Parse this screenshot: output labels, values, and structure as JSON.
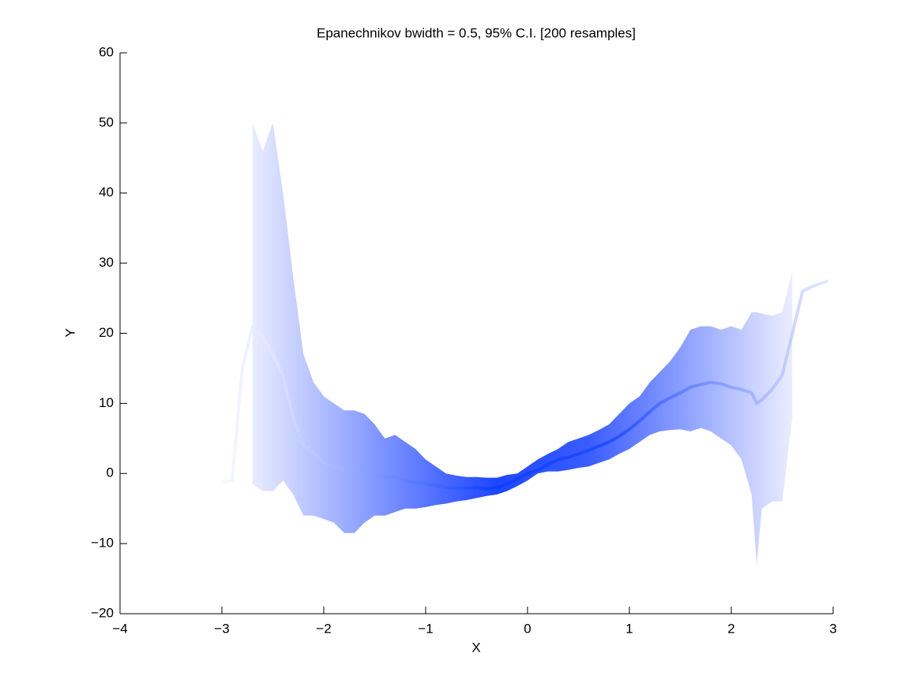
{
  "chart_data": {
    "type": "line",
    "title": "Epanechnikov bwidth = 0.5, 95% C.I. [200 resamples]",
    "xlabel": "X",
    "ylabel": "Y",
    "color": "#1e46ff",
    "x": [
      -3,
      -2.9,
      -2.8,
      -2.7,
      -2.6,
      -2.5,
      -2.4,
      -2.3,
      -2.2,
      -2.1,
      -2,
      -1.9,
      -1.8,
      -1.7,
      -1.6,
      -1.5,
      -1.4,
      -1.3,
      -1.2,
      -1.1,
      -1,
      -0.9,
      -0.8,
      -0.7,
      -0.6,
      -0.5,
      -0.4,
      -0.3,
      -0.2,
      -0.1,
      0,
      0.1,
      0.2,
      0.3,
      0.4,
      0.5,
      0.6,
      0.7,
      0.8,
      0.9,
      1,
      1.1,
      1.2,
      1.3,
      1.4,
      1.5,
      1.6,
      1.7,
      1.8,
      1.9,
      2,
      2.1,
      2.2,
      2.25,
      2.3,
      2.4,
      2.5,
      2.6,
      2.7,
      2.8,
      2.9,
      2.95
    ],
    "values": [
      -1.2,
      -1,
      15,
      21,
      19.5,
      17,
      14,
      8,
      4,
      3,
      1.5,
      1,
      0.5,
      0.8,
      0.5,
      0,
      -0.5,
      -0.5,
      -1,
      -1.3,
      -1.5,
      -1.7,
      -2,
      -2.1,
      -2.1,
      -2,
      -2.2,
      -2,
      -1.5,
      -0.8,
      0,
      0.5,
      1.3,
      2,
      2.3,
      2.8,
      3.3,
      3.9,
      4.5,
      5.3,
      6.3,
      7.5,
      8.8,
      10,
      10.8,
      11.5,
      12.3,
      12.7,
      13,
      12.8,
      12.3,
      12,
      11.5,
      10,
      10.5,
      12,
      14,
      20,
      26,
      26.7,
      27.2,
      27.5
    ],
    "lower": [
      null,
      null,
      null,
      -1.5,
      -2.5,
      -2.5,
      -1,
      -3,
      -6,
      -6,
      -6.5,
      -7,
      -8.5,
      -8.5,
      -7,
      -6,
      -6,
      -5.5,
      -5,
      -5,
      -4.8,
      -4.5,
      -4.3,
      -4,
      -3.8,
      -3.5,
      -3.2,
      -3,
      -2.5,
      -1.8,
      -1,
      0,
      0.3,
      0.3,
      0.5,
      0.8,
      1,
      1.5,
      2,
      2.8,
      3.5,
      4.5,
      5.5,
      6,
      6.2,
      6.3,
      6,
      6.5,
      6,
      5,
      4,
      2,
      -3,
      -13,
      -5,
      -4,
      -4,
      8,
      null,
      null,
      null,
      null
    ],
    "upper": [
      null,
      null,
      null,
      50,
      46,
      50,
      40,
      28,
      17,
      13,
      11,
      10,
      9,
      9,
      8.5,
      7,
      5,
      5.5,
      4.5,
      3.5,
      2,
      1,
      0,
      -0.3,
      -0.5,
      -0.5,
      -0.6,
      -0.6,
      -0.2,
      0,
      1,
      2,
      2.8,
      3.5,
      4.5,
      5,
      5.5,
      6.2,
      7,
      8.5,
      10,
      11,
      13,
      14.5,
      16,
      18,
      20.5,
      21,
      21,
      20.5,
      21,
      20.5,
      23,
      23,
      22.8,
      22.5,
      23,
      29,
      null,
      null,
      null,
      null
    ],
    "xlim": [
      -4,
      3
    ],
    "ylim": [
      -20,
      60
    ],
    "xticks": [
      {
        "value": -4,
        "label": "−4"
      },
      {
        "value": -3,
        "label": "−3"
      },
      {
        "value": -2,
        "label": "−2"
      },
      {
        "value": -1,
        "label": "−1"
      },
      0,
      1,
      2,
      3
    ],
    "yticks": [
      {
        "value": -20,
        "label": "−20"
      },
      {
        "value": -10,
        "label": "−10"
      },
      0,
      10,
      20,
      30,
      40,
      50,
      60
    ]
  }
}
